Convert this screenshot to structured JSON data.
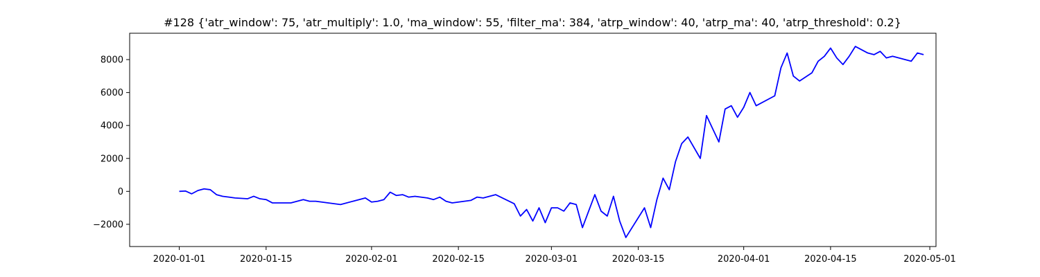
{
  "chart_data": {
    "type": "line",
    "title": "#128 {'atr_window': 75, 'atr_multiply': 1.0, 'ma_window': 55, 'filter_ma': 384, 'atrp_window': 40, 'atrp_ma': 40, 'atrp_threshold': 0.2}",
    "xlabel": "",
    "ylabel": "",
    "xlim": [
      "2019-12-24",
      "2020-05-02"
    ],
    "ylim": [
      -3350,
      9600
    ],
    "x_ticks": [
      "2020-01-01",
      "2020-01-15",
      "2020-02-01",
      "2020-02-15",
      "2020-03-01",
      "2020-03-15",
      "2020-04-01",
      "2020-04-15",
      "2020-05-01"
    ],
    "y_ticks": [
      -2000,
      0,
      2000,
      4000,
      6000,
      8000
    ],
    "y_tick_labels": [
      "−2000",
      "0",
      "2000",
      "4000",
      "6000",
      "8000"
    ],
    "grid": false,
    "legend": "none",
    "line_color": "#0000ff",
    "series": [
      {
        "x": [
          "2020-01-01",
          "2020-01-02",
          "2020-01-03",
          "2020-01-04",
          "2020-01-05",
          "2020-01-06",
          "2020-01-07",
          "2020-01-08",
          "2020-01-09",
          "2020-01-10",
          "2020-01-12",
          "2020-01-13",
          "2020-01-14",
          "2020-01-15",
          "2020-01-16",
          "2020-01-17",
          "2020-01-19",
          "2020-01-21",
          "2020-01-22",
          "2020-01-23",
          "2020-01-25",
          "2020-01-27",
          "2020-01-29",
          "2020-01-30",
          "2020-01-31",
          "2020-02-01",
          "2020-02-02",
          "2020-02-03",
          "2020-02-04",
          "2020-02-05",
          "2020-02-06",
          "2020-02-07",
          "2020-02-08",
          "2020-02-10",
          "2020-02-11",
          "2020-02-12",
          "2020-02-13",
          "2020-02-14",
          "2020-02-17",
          "2020-02-18",
          "2020-02-19",
          "2020-02-20",
          "2020-02-21",
          "2020-02-24",
          "2020-02-25",
          "2020-02-26",
          "2020-02-27",
          "2020-02-28",
          "2020-02-29",
          "2020-03-01",
          "2020-03-02",
          "2020-03-03",
          "2020-03-04",
          "2020-03-05",
          "2020-03-06",
          "2020-03-08",
          "2020-03-09",
          "2020-03-10",
          "2020-03-11",
          "2020-03-12",
          "2020-03-13",
          "2020-03-16",
          "2020-03-17",
          "2020-03-18",
          "2020-03-19",
          "2020-03-20",
          "2020-03-21",
          "2020-03-22",
          "2020-03-23",
          "2020-03-25",
          "2020-03-26",
          "2020-03-27",
          "2020-03-28",
          "2020-03-29",
          "2020-03-30",
          "2020-03-31",
          "2020-04-01",
          "2020-04-02",
          "2020-04-03",
          "2020-04-06",
          "2020-04-07",
          "2020-04-08",
          "2020-04-09",
          "2020-04-10",
          "2020-04-12",
          "2020-04-13",
          "2020-04-14",
          "2020-04-15",
          "2020-04-16",
          "2020-04-17",
          "2020-04-18",
          "2020-04-19",
          "2020-04-21",
          "2020-04-22",
          "2020-04-23",
          "2020-04-24",
          "2020-04-25",
          "2020-04-26",
          "2020-04-28",
          "2020-04-29",
          "2020-04-30"
        ],
        "y": [
          0,
          20,
          -150,
          50,
          150,
          100,
          -200,
          -300,
          -350,
          -400,
          -450,
          -300,
          -450,
          -500,
          -700,
          -700,
          -700,
          -500,
          -600,
          -600,
          -700,
          -800,
          -600,
          -500,
          -400,
          -650,
          -600,
          -500,
          -50,
          -250,
          -200,
          -350,
          -300,
          -400,
          -500,
          -350,
          -600,
          -700,
          -550,
          -350,
          -400,
          -300,
          -200,
          -750,
          -1500,
          -1100,
          -1800,
          -1000,
          -1900,
          -1000,
          -1000,
          -1200,
          -700,
          -800,
          -2200,
          -200,
          -1200,
          -1500,
          -300,
          -1800,
          -2800,
          -1000,
          -2200,
          -500,
          800,
          100,
          1800,
          2900,
          3300,
          2000,
          4600,
          3800,
          3000,
          5000,
          5200,
          4500,
          5100,
          6000,
          5200,
          5800,
          7500,
          8400,
          7000,
          6700,
          7200,
          7900,
          8200,
          8700,
          8100,
          7700,
          8200,
          8800,
          8400,
          8300,
          8500,
          8100,
          8200,
          8100,
          7900,
          8400,
          8300
        ]
      }
    ]
  }
}
